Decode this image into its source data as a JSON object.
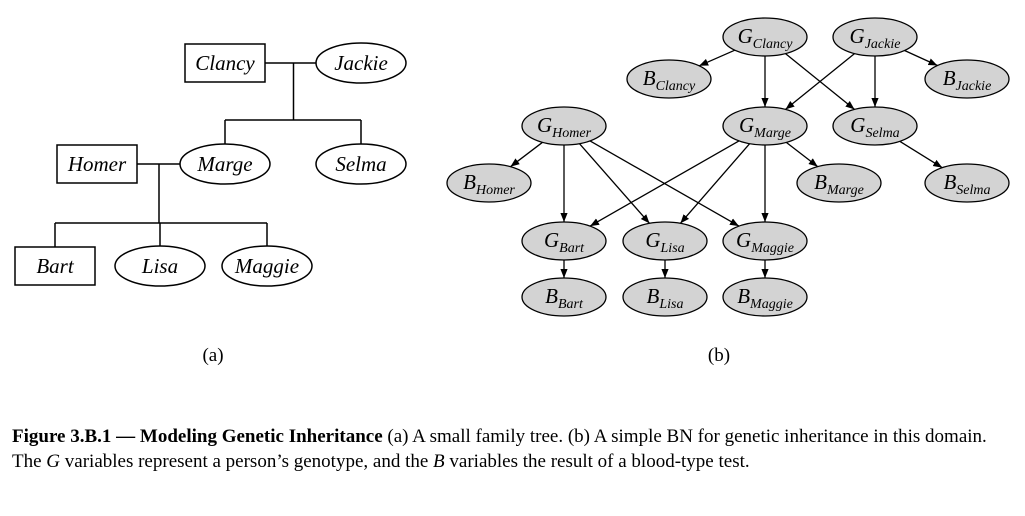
{
  "panel_a": {
    "label": "(a)",
    "nodes": [
      {
        "id": "clancy",
        "text": "Clancy",
        "shape": "box"
      },
      {
        "id": "jackie",
        "text": "Jackie",
        "shape": "ellipse"
      },
      {
        "id": "homer",
        "text": "Homer",
        "shape": "box"
      },
      {
        "id": "marge",
        "text": "Marge",
        "shape": "ellipse"
      },
      {
        "id": "selma",
        "text": "Selma",
        "shape": "ellipse"
      },
      {
        "id": "bart",
        "text": "Bart",
        "shape": "box"
      },
      {
        "id": "lisa",
        "text": "Lisa",
        "shape": "ellipse"
      },
      {
        "id": "maggie",
        "text": "Maggie",
        "shape": "ellipse"
      }
    ],
    "marriages": [
      {
        "partners": [
          "clancy",
          "jackie"
        ],
        "children": [
          "marge",
          "selma"
        ]
      },
      {
        "partners": [
          "homer",
          "marge"
        ],
        "children": [
          "bart",
          "lisa",
          "maggie"
        ]
      }
    ]
  },
  "panel_b": {
    "label": "(b)",
    "node_fill": "#d3d3d3",
    "nodes": [
      {
        "id": "g_clancy",
        "main": "G",
        "sub": "Clancy"
      },
      {
        "id": "g_jackie",
        "main": "G",
        "sub": "Jackie"
      },
      {
        "id": "b_clancy",
        "main": "B",
        "sub": "Clancy"
      },
      {
        "id": "b_jackie",
        "main": "B",
        "sub": "Jackie"
      },
      {
        "id": "g_homer",
        "main": "G",
        "sub": "Homer"
      },
      {
        "id": "g_marge",
        "main": "G",
        "sub": "Marge"
      },
      {
        "id": "g_selma",
        "main": "G",
        "sub": "Selma"
      },
      {
        "id": "b_homer",
        "main": "B",
        "sub": "Homer"
      },
      {
        "id": "b_marge",
        "main": "B",
        "sub": "Marge"
      },
      {
        "id": "b_selma",
        "main": "B",
        "sub": "Selma"
      },
      {
        "id": "g_bart",
        "main": "G",
        "sub": "Bart"
      },
      {
        "id": "g_lisa",
        "main": "G",
        "sub": "Lisa"
      },
      {
        "id": "g_maggie",
        "main": "G",
        "sub": "Maggie"
      },
      {
        "id": "b_bart",
        "main": "B",
        "sub": "Bart"
      },
      {
        "id": "b_lisa",
        "main": "B",
        "sub": "Lisa"
      },
      {
        "id": "b_maggie",
        "main": "B",
        "sub": "Maggie"
      }
    ],
    "edges": [
      [
        "g_clancy",
        "b_clancy"
      ],
      [
        "g_clancy",
        "g_marge"
      ],
      [
        "g_clancy",
        "g_selma"
      ],
      [
        "g_jackie",
        "b_jackie"
      ],
      [
        "g_jackie",
        "g_marge"
      ],
      [
        "g_jackie",
        "g_selma"
      ],
      [
        "g_homer",
        "b_homer"
      ],
      [
        "g_homer",
        "g_bart"
      ],
      [
        "g_homer",
        "g_lisa"
      ],
      [
        "g_homer",
        "g_maggie"
      ],
      [
        "g_marge",
        "b_marge"
      ],
      [
        "g_marge",
        "g_bart"
      ],
      [
        "g_marge",
        "g_lisa"
      ],
      [
        "g_marge",
        "g_maggie"
      ],
      [
        "g_selma",
        "b_selma"
      ],
      [
        "g_bart",
        "b_bart"
      ],
      [
        "g_lisa",
        "b_lisa"
      ],
      [
        "g_maggie",
        "b_maggie"
      ]
    ]
  },
  "caption": {
    "title": "Figure 3.B.1 — Modeling Genetic Inheritance",
    "part1": " (a) A small family tree. (b) A simple BN for genetic inheritance in this domain. The ",
    "var_g": "G",
    "part2": " variables represent a person’s genotype, and the ",
    "var_b": "B",
    "part3": " variables the result of a blood-type test."
  }
}
